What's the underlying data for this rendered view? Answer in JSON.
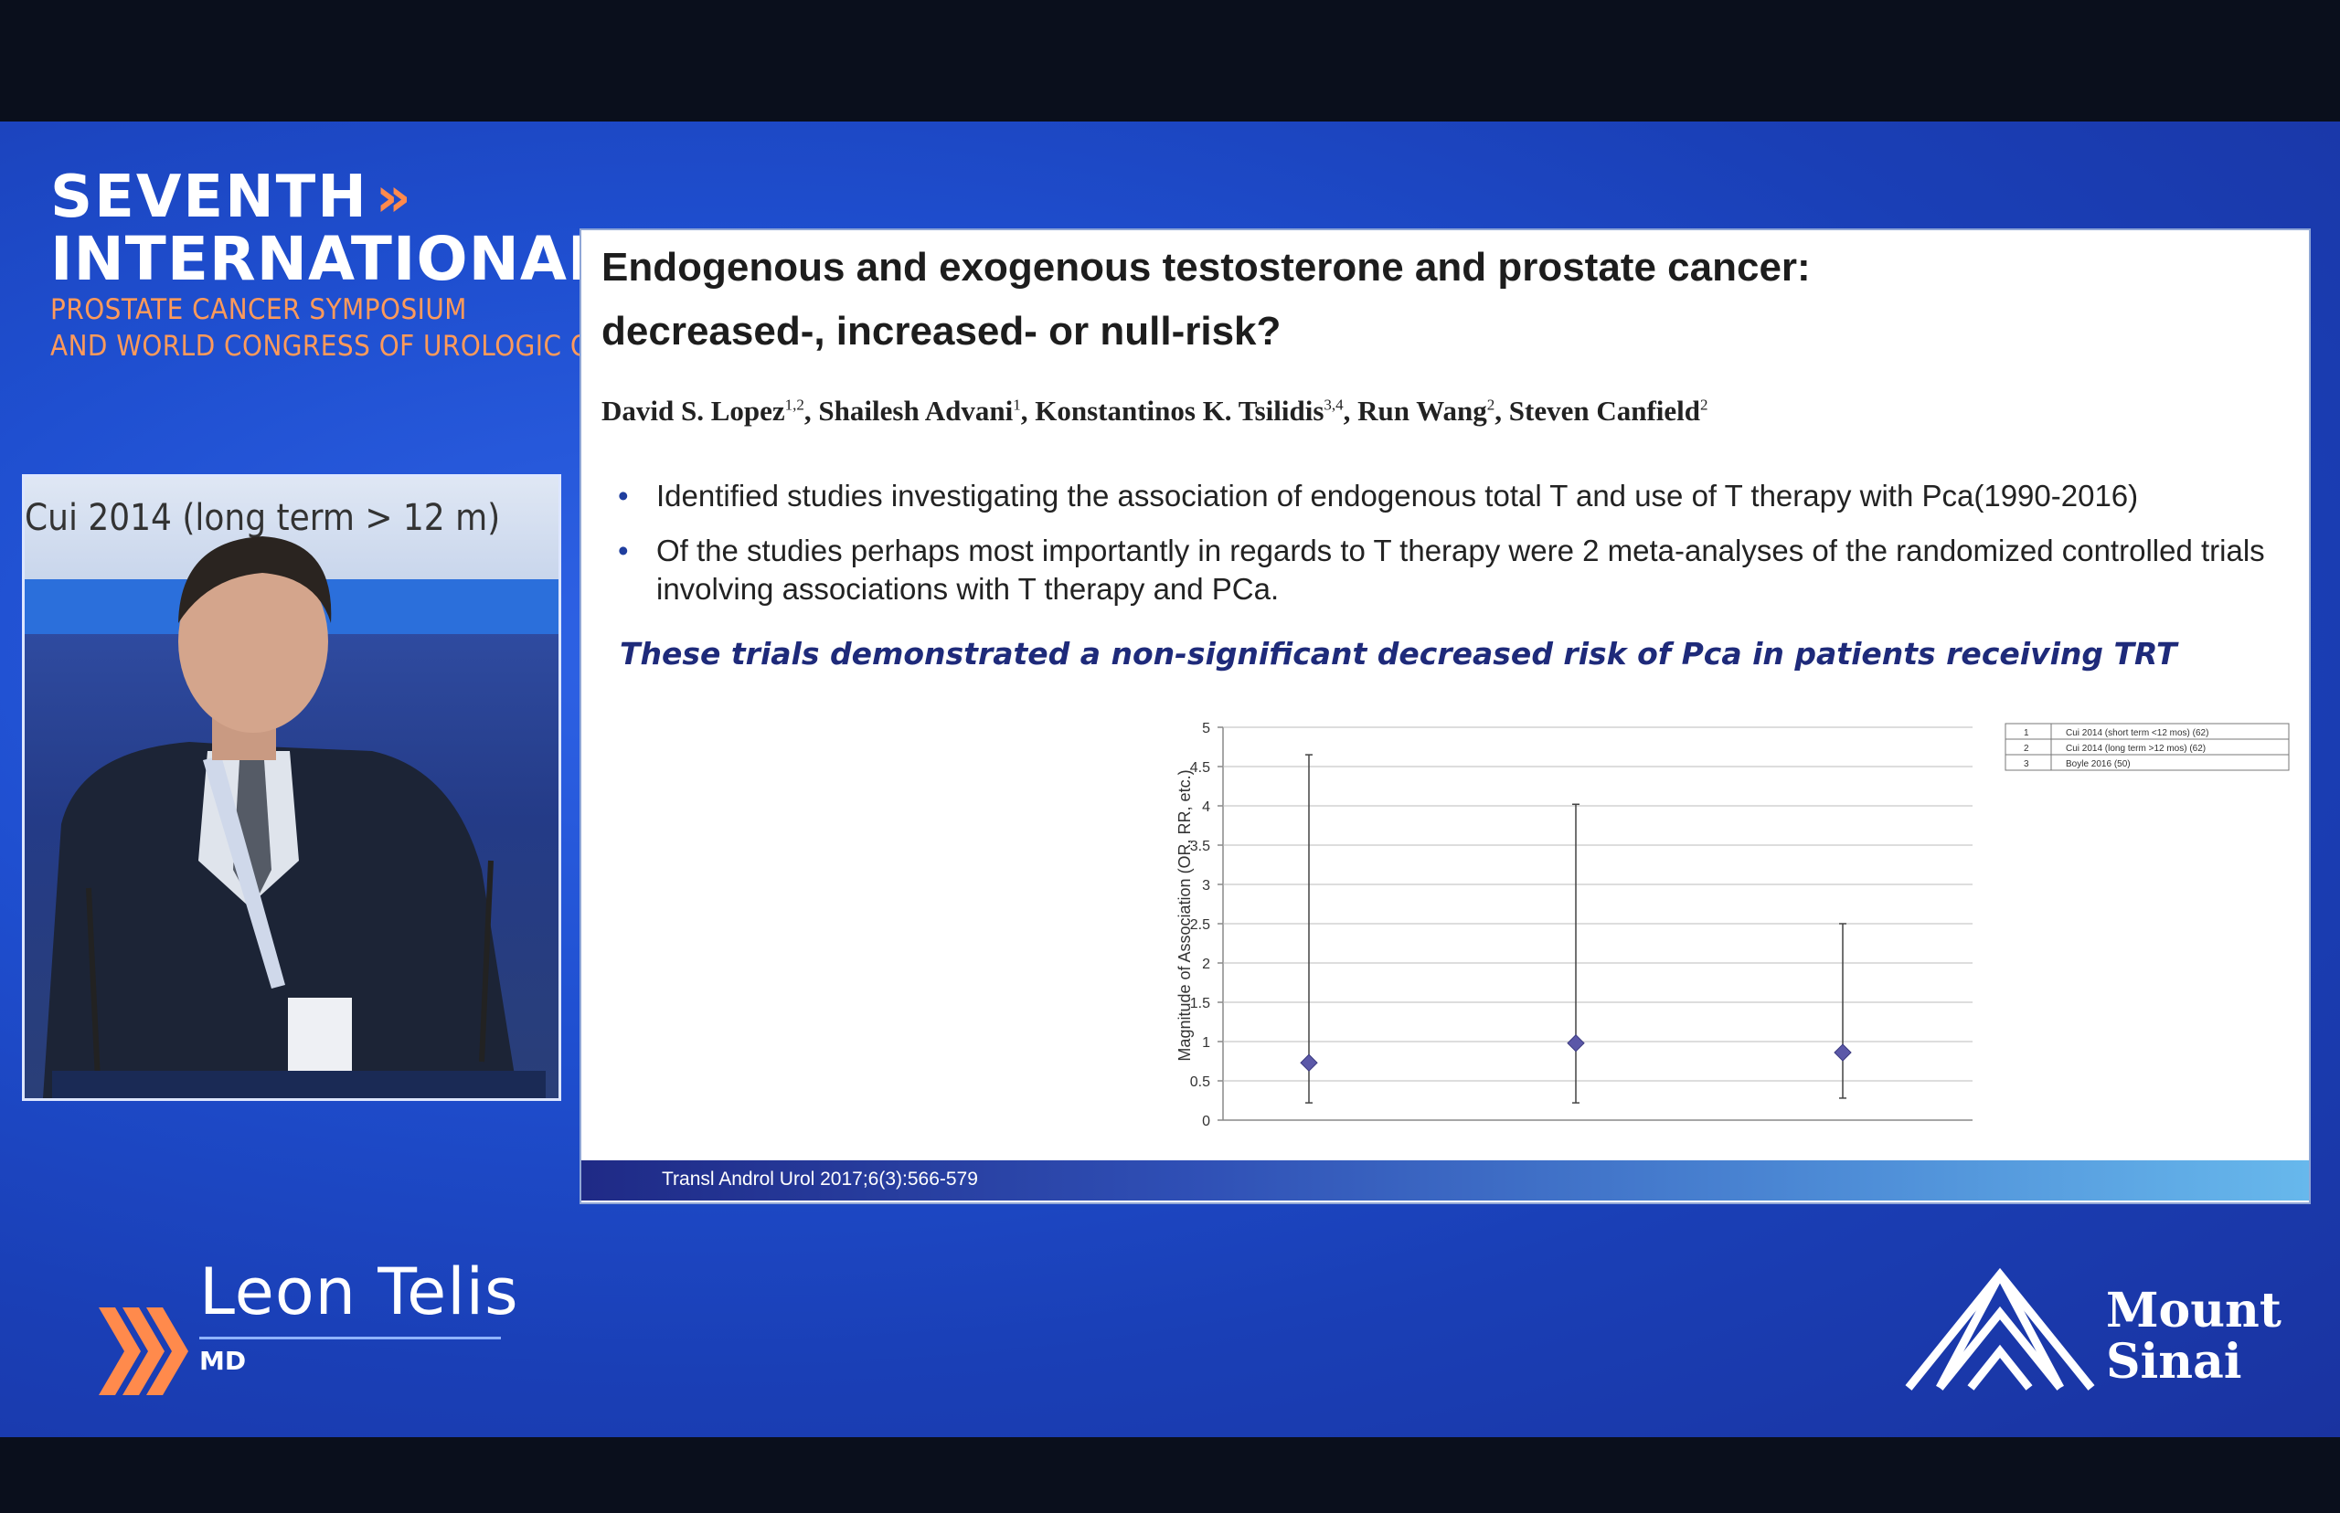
{
  "event": {
    "line1": "SEVENTH",
    "line2": "INTERNATIONAL",
    "sub1": "PROSTATE CANCER SYMPOSIUM",
    "sub2": "AND WORLD CONGRESS OF UROLOGIC ONCOLOGY",
    "chevron_glyph": "»"
  },
  "video": {
    "background_screen_text": "Cui 2014 (long term > 12 m)"
  },
  "slide": {
    "title_line1": "Endogenous and exogenous testosterone and prostate cancer:",
    "title_line2": "decreased-, increased- or null-risk?",
    "authors": [
      {
        "name": "David S. Lopez",
        "sup": "1,2"
      },
      {
        "name": "Shailesh Advani",
        "sup": "1"
      },
      {
        "name": "Konstantinos K. Tsilidis",
        "sup": "3,4"
      },
      {
        "name": "Run Wang",
        "sup": "2"
      },
      {
        "name": "Steven Canfield",
        "sup": "2"
      }
    ],
    "bullets": [
      "Identified studies investigating the association of endogenous total T and use of T therapy with Pca(1990-2016)",
      "Of the studies perhaps most importantly in regards to T therapy were 2 meta-analyses of the randomized controlled trials involving associations with T therapy and PCa."
    ],
    "bullet_marker": "•",
    "emphasis": "These trials demonstrated a non-significant decreased risk of Pca in patients receiving TRT",
    "footer": "Transl Androl Urol 2017;6(3):566-579"
  },
  "chart_data": {
    "type": "scatter",
    "categories": [
      "1) Cui 2014 (short term <12 m)",
      "2) Cui 2014 (long term > 12 m)",
      "3) Boyle 2016"
    ],
    "series": [
      {
        "values": [
          0.73,
          0.98,
          0.86
        ],
        "error_low": [
          0.22,
          0.22,
          0.28
        ],
        "error_high": [
          4.65,
          4.02,
          2.5
        ]
      }
    ],
    "ylabel": "Magnitude of Association (OR, RR, etc.)",
    "ylim": [
      0,
      5
    ],
    "yticks": [
      "0",
      "0.5",
      "1",
      "1.5",
      "2",
      "2.5",
      "3",
      "3.5",
      "4",
      "4.5",
      "5"
    ],
    "grid": true,
    "marker_color": "#5b58a8",
    "legend_table": [
      [
        "1",
        "Cui 2014 (short term <12 mos) (62)"
      ],
      [
        "2",
        "Cui 2014 (long term >12 mos) (62)"
      ],
      [
        "3",
        "Boyle 2016 (50)"
      ]
    ],
    "legend_placement": "top-right"
  },
  "speaker": {
    "name": "Leon Telis",
    "credential": "MD"
  },
  "sponsor": {
    "line1": "Mount",
    "line2": "Sinai"
  },
  "colors": {
    "background": "#1f4fd0",
    "accent_orange": "#ff8a4c",
    "emphasis_text": "#1e2a7a"
  }
}
